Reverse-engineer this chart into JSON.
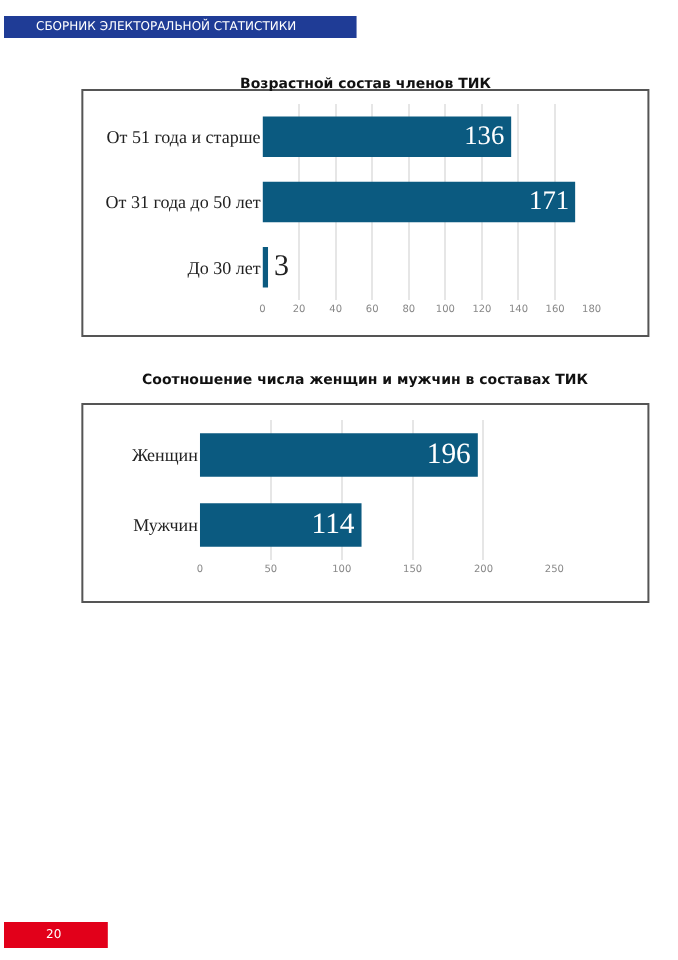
{
  "chart_data": [
    {
      "type": "bar",
      "orientation": "horizontal",
      "title": "Возрастной состав членов ТИК",
      "categories": [
        "От 51 года и старше",
        "От 31 года до 50 лет",
        "До 30 лет"
      ],
      "values": [
        136,
        171,
        3
      ],
      "color": "#0b5a80",
      "xlim": [
        0,
        180
      ],
      "xticks": [
        0,
        20,
        40,
        60,
        80,
        100,
        120,
        140,
        160,
        180
      ],
      "grid": "x",
      "data_labels": true,
      "annotations": [
        "СБОРНИК ЭЛЕКТОРАЛЬНОЙ СТАТИСТИКИ"
      ]
    },
    {
      "type": "bar",
      "orientation": "horizontal",
      "title": "Соотношение числа женщин и мужчин в составах ТИК",
      "categories": [
        "Женщин",
        "Мужчин"
      ],
      "values": [
        196,
        114
      ],
      "color": "#0b5a80",
      "xlim": [
        0,
        250
      ],
      "xticks": [
        0,
        50,
        100,
        150,
        200,
        250
      ],
      "grid": "x",
      "data_labels": true,
      "annotations": [
        "20"
      ]
    }
  ]
}
